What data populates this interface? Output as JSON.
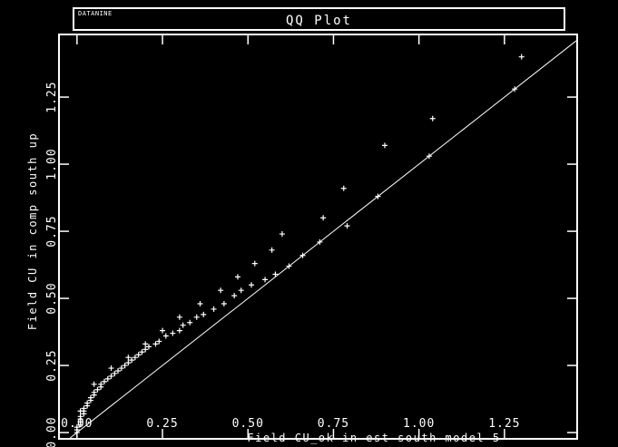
{
  "header": {
    "brand": "DATANINE",
    "title": "QQ Plot"
  },
  "chart_data": {
    "type": "scatter",
    "title": "QQ Plot",
    "xlabel": "Field CU_ok in est-south-model-5",
    "ylabel": "Field CU in comp south up",
    "xlim": [
      -0.05,
      1.46
    ],
    "ylim": [
      -0.02,
      1.48
    ],
    "x_ticks": [
      0.0,
      0.25,
      0.5,
      0.75,
      1.0,
      1.25
    ],
    "x_tick_labels": [
      "0.00",
      "0.25",
      "0.50",
      "0.75",
      "1.00",
      "1.25"
    ],
    "y_ticks": [
      0.0,
      0.25,
      0.5,
      0.75,
      1.0,
      1.25
    ],
    "y_tick_labels": [
      "0.00",
      "0.25",
      "0.50",
      "0.75",
      "1.00",
      "1.25"
    ],
    "reference_line": "y = x",
    "grid": false,
    "colors": {
      "background": "#000000",
      "foreground": "#ffffff"
    },
    "points": [
      [
        0.0,
        0.0
      ],
      [
        0.0,
        0.01
      ],
      [
        0.0,
        0.02
      ],
      [
        0.01,
        0.03
      ],
      [
        0.01,
        0.04
      ],
      [
        0.01,
        0.05
      ],
      [
        0.01,
        0.06
      ],
      [
        0.02,
        0.07
      ],
      [
        0.02,
        0.08
      ],
      [
        0.02,
        0.09
      ],
      [
        0.03,
        0.1
      ],
      [
        0.03,
        0.11
      ],
      [
        0.04,
        0.12
      ],
      [
        0.04,
        0.13
      ],
      [
        0.05,
        0.14
      ],
      [
        0.05,
        0.15
      ],
      [
        0.06,
        0.16
      ],
      [
        0.07,
        0.17
      ],
      [
        0.07,
        0.18
      ],
      [
        0.08,
        0.19
      ],
      [
        0.09,
        0.2
      ],
      [
        0.1,
        0.21
      ],
      [
        0.11,
        0.22
      ],
      [
        0.12,
        0.23
      ],
      [
        0.13,
        0.24
      ],
      [
        0.14,
        0.25
      ],
      [
        0.15,
        0.26
      ],
      [
        0.16,
        0.27
      ],
      [
        0.17,
        0.28
      ],
      [
        0.18,
        0.29
      ],
      [
        0.19,
        0.3
      ],
      [
        0.2,
        0.31
      ],
      [
        0.21,
        0.32
      ],
      [
        0.23,
        0.33
      ],
      [
        0.24,
        0.34
      ],
      [
        0.26,
        0.36
      ],
      [
        0.28,
        0.37
      ],
      [
        0.3,
        0.38
      ],
      [
        0.31,
        0.4
      ],
      [
        0.33,
        0.41
      ],
      [
        0.35,
        0.43
      ],
      [
        0.37,
        0.44
      ],
      [
        0.4,
        0.46
      ],
      [
        0.43,
        0.48
      ],
      [
        0.46,
        0.51
      ],
      [
        0.48,
        0.53
      ],
      [
        0.51,
        0.55
      ],
      [
        0.55,
        0.57
      ],
      [
        0.58,
        0.59
      ],
      [
        0.62,
        0.62
      ],
      [
        0.66,
        0.66
      ],
      [
        0.71,
        0.71
      ],
      [
        0.79,
        0.77
      ],
      [
        0.88,
        0.88
      ],
      [
        1.03,
        1.03
      ],
      [
        1.28,
        1.28
      ],
      [
        0.01,
        0.08
      ],
      [
        0.05,
        0.18
      ],
      [
        0.1,
        0.24
      ],
      [
        0.15,
        0.28
      ],
      [
        0.2,
        0.33
      ],
      [
        0.25,
        0.38
      ],
      [
        0.3,
        0.43
      ],
      [
        0.36,
        0.48
      ],
      [
        0.42,
        0.53
      ],
      [
        0.47,
        0.58
      ],
      [
        0.52,
        0.63
      ],
      [
        0.57,
        0.68
      ],
      [
        0.6,
        0.74
      ],
      [
        0.72,
        0.8
      ],
      [
        0.78,
        0.91
      ],
      [
        0.9,
        1.07
      ],
      [
        1.04,
        1.17
      ],
      [
        1.3,
        1.4
      ]
    ]
  }
}
